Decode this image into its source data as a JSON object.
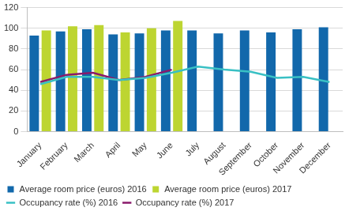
{
  "chart_data": {
    "type": "bar",
    "categories": [
      "January",
      "February",
      "March",
      "April",
      "May",
      "June",
      "July",
      "August",
      "September",
      "October",
      "November",
      "December"
    ],
    "series": [
      {
        "name": "Average room price (euros) 2016",
        "type": "bar",
        "color": "#1268ab",
        "values": [
          93,
          97,
          99,
          94,
          95,
          98,
          98,
          95,
          98,
          96,
          99,
          101
        ]
      },
      {
        "name": "Average room price (euros) 2017",
        "type": "bar",
        "color": "#bdd531",
        "values": [
          98,
          102,
          103,
          96,
          100,
          107,
          null,
          null,
          null,
          null,
          null,
          null
        ]
      },
      {
        "name": "Occupancy rate (%) 2016",
        "type": "line",
        "color": "#39c0c4",
        "values": [
          46,
          53,
          53,
          50,
          52,
          57,
          63,
          60,
          58,
          52,
          53,
          48
        ]
      },
      {
        "name": "Occupancy rate (%) 2017",
        "type": "line",
        "color": "#8a1a6b",
        "values": [
          48,
          55,
          57,
          50,
          53,
          60,
          null,
          null,
          null,
          null,
          null,
          null
        ]
      }
    ],
    "ylim": [
      0,
      120
    ],
    "yticks": [
      0,
      20,
      40,
      60,
      80,
      100,
      120
    ],
    "grid": true,
    "legend": "bottom"
  }
}
